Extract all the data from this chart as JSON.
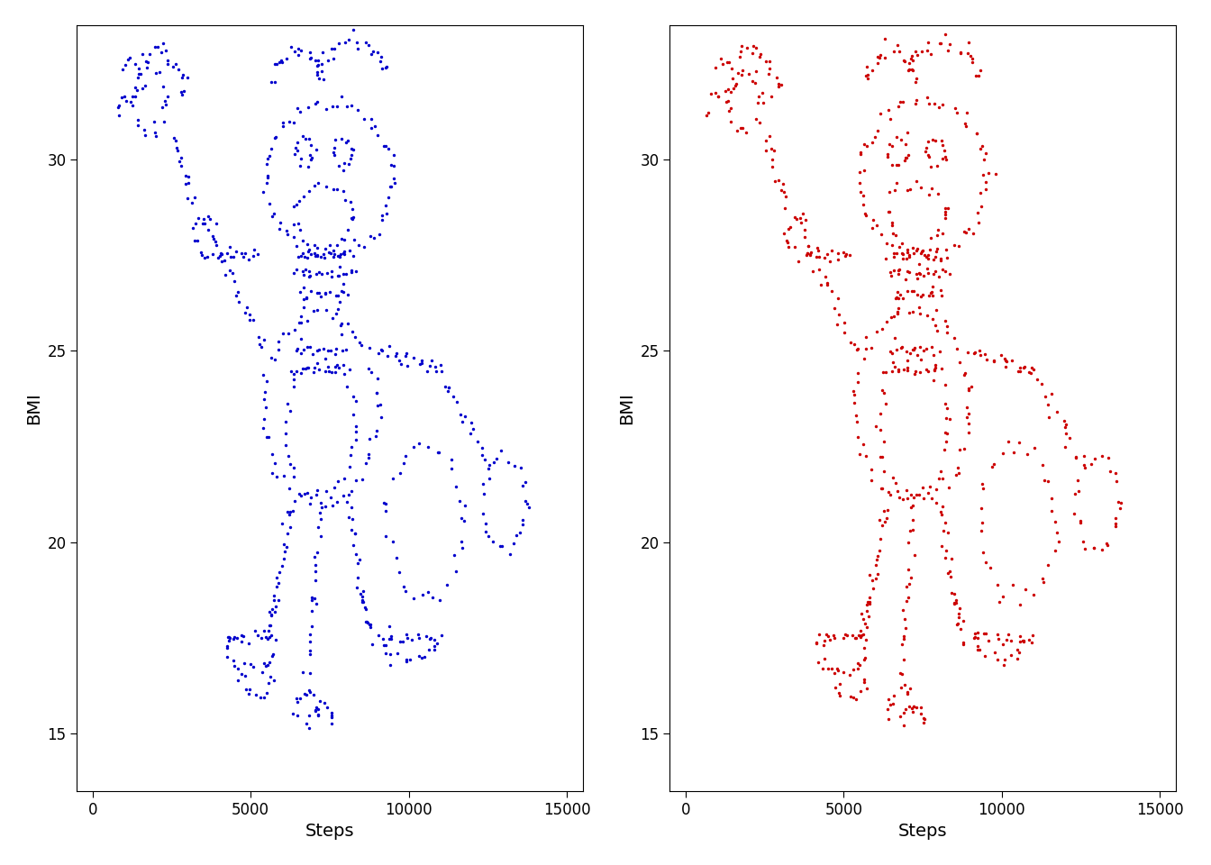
{
  "xlabel": "Steps",
  "ylabel": "BMI",
  "xlim": [
    -500,
    15500
  ],
  "ylim": [
    13.5,
    33.5
  ],
  "color_left": "#0000CC",
  "color_right": "#CC0000",
  "point_size": 6,
  "background_color": "#ffffff",
  "xticks": [
    0,
    5000,
    10000,
    15000
  ],
  "yticks": [
    15,
    20,
    25,
    30
  ]
}
